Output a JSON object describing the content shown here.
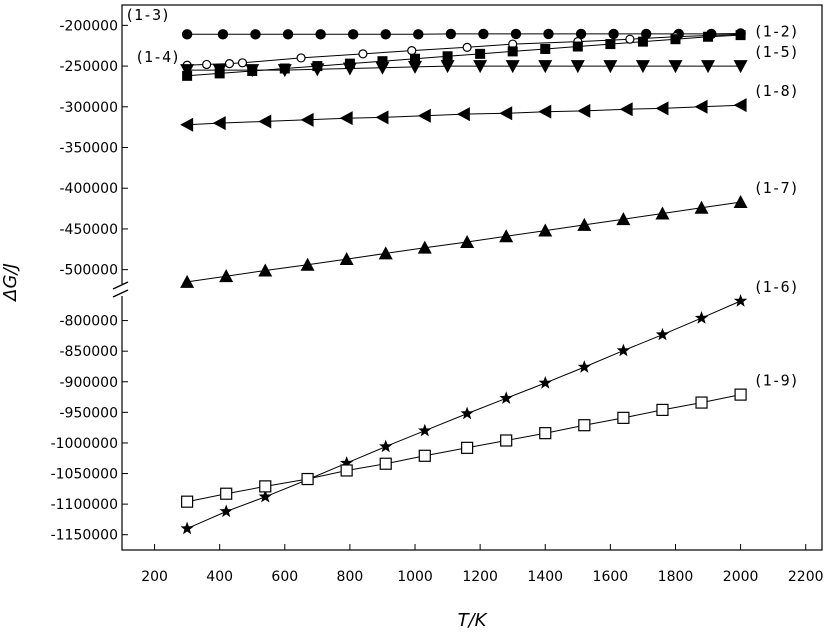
{
  "chart_data": {
    "type": "line",
    "title": "",
    "xlabel": "T/K",
    "ylabel": "ΔG/J",
    "xlim": [
      100,
      2250
    ],
    "x_ticks": [
      200,
      400,
      600,
      800,
      1000,
      1200,
      1400,
      1600,
      1800,
      2000,
      2200
    ],
    "x_tick_labels": [
      "200",
      "400",
      "600",
      "800",
      "1000",
      "1200",
      "1400",
      "1600",
      "1800",
      "2000",
      "2200"
    ],
    "axis_break": true,
    "upper_segment": {
      "ylim": [
        -525000,
        -175000
      ],
      "y_ticks": [
        -200000,
        -250000,
        -300000,
        -350000,
        -400000,
        -450000,
        -500000
      ],
      "y_tick_labels": [
        "-200000",
        "-250000",
        "-300000",
        "-350000",
        "-400000",
        "-450000",
        "-500000"
      ]
    },
    "lower_segment": {
      "ylim": [
        -1175000,
        -750000
      ],
      "y_ticks": [
        -800000,
        -850000,
        -900000,
        -950000,
        -1000000,
        -1050000,
        -1100000,
        -1150000
      ],
      "y_tick_labels": [
        "-800000",
        "-850000",
        "-900000",
        "-950000",
        "-1000000",
        "-1050000",
        "-1100000",
        "-1150000"
      ]
    },
    "grid": false,
    "legend": "none",
    "series": [
      {
        "name": "(1-3)",
        "marker": "filled-circle",
        "x": [
          300,
          410,
          510,
          610,
          710,
          810,
          910,
          1010,
          1110,
          1210,
          1310,
          1410,
          1510,
          1610,
          1710,
          1810,
          1910,
          2000
        ],
        "y": [
          -211000,
          -211000,
          -211000,
          -211000,
          -211000,
          -211000,
          -211000,
          -211000,
          -210500,
          -210500,
          -210500,
          -210500,
          -210500,
          -210500,
          -210500,
          -210500,
          -210500,
          -210000
        ]
      },
      {
        "name": "(1-2)",
        "marker": "open-circle",
        "x": [
          300,
          360,
          430,
          470,
          650,
          840,
          990,
          1160,
          1300,
          1500,
          1660,
          1800,
          2000
        ],
        "y": [
          -249000,
          -248000,
          -247000,
          -246000,
          -240000,
          -235000,
          -231000,
          -227000,
          -223000,
          -220000,
          -217000,
          -214000,
          -211000
        ]
      },
      {
        "name": "(1-4)",
        "marker": "filled-square",
        "x": [
          300,
          400,
          500,
          600,
          700,
          800,
          900,
          1000,
          1100,
          1200,
          1300,
          1400,
          1500,
          1600,
          1700,
          1800,
          1900,
          2000
        ],
        "y": [
          -262000,
          -259000,
          -256000,
          -253000,
          -250000,
          -247000,
          -244000,
          -241000,
          -238000,
          -235000,
          -232000,
          -229000,
          -226000,
          -223000,
          -220000,
          -217000,
          -214000,
          -212000
        ]
      },
      {
        "name": "(1-5)",
        "marker": "filled-triangle-down",
        "x": [
          300,
          400,
          500,
          600,
          700,
          800,
          900,
          1000,
          1100,
          1200,
          1300,
          1400,
          1500,
          1600,
          1700,
          1800,
          1900,
          2000
        ],
        "y": [
          -255000,
          -255000,
          -255000,
          -255000,
          -254000,
          -253000,
          -252000,
          -251000,
          -250000,
          -250000,
          -250000,
          -250000,
          -250000,
          -250000,
          -250000,
          -250000,
          -250000,
          -250000
        ]
      },
      {
        "name": "(1-8)",
        "marker": "filled-triangle-left",
        "x": [
          300,
          400,
          540,
          670,
          790,
          900,
          1030,
          1150,
          1280,
          1400,
          1520,
          1650,
          1760,
          1880,
          2000
        ],
        "y": [
          -322000,
          -320000,
          -318000,
          -316000,
          -314000,
          -313000,
          -311000,
          -309000,
          -308000,
          -306000,
          -305000,
          -303000,
          -302000,
          -300000,
          -298000
        ]
      },
      {
        "name": "(1-7)",
        "marker": "filled-triangle-up",
        "x": [
          300,
          420,
          540,
          670,
          790,
          910,
          1030,
          1160,
          1280,
          1400,
          1520,
          1640,
          1760,
          1880,
          2000
        ],
        "y": [
          -515000,
          -508000,
          -501000,
          -494000,
          -487000,
          -480000,
          -473000,
          -466000,
          -459000,
          -452000,
          -445000,
          -438000,
          -431000,
          -424000,
          -417000
        ]
      },
      {
        "name": "(1-6)",
        "marker": "filled-star",
        "x": [
          300,
          420,
          540,
          670,
          790,
          910,
          1030,
          1160,
          1280,
          1400,
          1520,
          1640,
          1760,
          1880,
          2000
        ],
        "y": [
          -1140000,
          -1112000,
          -1088000,
          -1060000,
          -1033000,
          -1006000,
          -980000,
          -952000,
          -927000,
          -902000,
          -876000,
          -849000,
          -823000,
          -796000,
          -768000
        ]
      },
      {
        "name": "(1-9)",
        "marker": "open-square",
        "x": [
          300,
          420,
          540,
          670,
          790,
          910,
          1030,
          1160,
          1280,
          1400,
          1520,
          1640,
          1760,
          1880,
          2000
        ],
        "y": [
          -1096000,
          -1083000,
          -1071000,
          -1059000,
          -1045000,
          -1034000,
          -1021000,
          -1008000,
          -996000,
          -984000,
          -971000,
          -959000,
          -946000,
          -934000,
          -921000
        ]
      }
    ]
  }
}
